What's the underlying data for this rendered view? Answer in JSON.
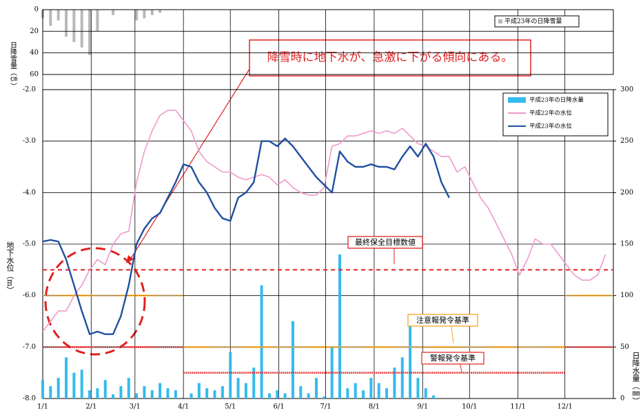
{
  "chart_data": [
    {
      "type": "bar",
      "y_label": "日降雪量（㎝）",
      "ylim": [
        0,
        60
      ],
      "yticks": [
        0,
        20,
        40,
        60
      ],
      "grid": true,
      "x": [
        "1/1",
        "1/6",
        "1/11",
        "1/16",
        "1/21",
        "1/26",
        "1/31",
        "2/5",
        "2/10",
        "2/15",
        "2/20",
        "2/25",
        "3/2",
        "3/7",
        "3/12",
        "3/17",
        "3/22",
        "3/27",
        "4/1",
        "4/6",
        "4/11",
        "4/16",
        "4/21",
        "4/26",
        "5/1",
        "5/6",
        "5/11",
        "5/16",
        "5/21",
        "5/26",
        "5/31",
        "6/5",
        "6/10",
        "6/15",
        "6/20",
        "6/25",
        "6/30",
        "7/5",
        "7/10",
        "7/15",
        "7/20",
        "7/25",
        "7/30",
        "8/4",
        "8/9",
        "8/14",
        "8/19",
        "8/24",
        "8/29",
        "9/3",
        "9/8",
        "9/13",
        "9/18",
        "9/23",
        "9/28",
        "10/3",
        "10/8",
        "10/13",
        "10/18",
        "10/23",
        "10/28",
        "11/2",
        "11/7",
        "11/12",
        "11/17",
        "11/22",
        "11/27",
        "12/2",
        "12/7",
        "12/12",
        "12/17",
        "12/22",
        "12/27"
      ],
      "xticks": [
        "1/1",
        "2/1",
        "3/1",
        "4/1",
        "5/1",
        "6/1",
        "7/1",
        "8/1",
        "9/1",
        "10/1",
        "11/1",
        "12/1"
      ],
      "series": [
        {
          "name": "平成23年の日降雪量",
          "color": "#b8b8b8",
          "values": [
            8,
            15,
            10,
            25,
            30,
            35,
            42,
            20,
            0,
            5,
            0,
            0,
            10,
            8,
            5,
            3,
            0,
            0,
            null,
            null,
            null,
            null,
            null,
            null,
            null,
            null,
            null,
            null,
            null,
            null,
            null,
            null,
            null,
            null,
            null,
            null,
            null,
            null,
            null,
            null,
            null,
            null,
            null,
            null,
            null,
            null,
            null,
            null,
            null,
            null,
            null,
            null,
            null,
            null,
            null,
            null,
            null,
            null,
            null,
            null,
            null,
            null,
            null,
            null,
            null,
            null,
            null,
            null,
            null,
            null,
            null,
            null,
            null
          ]
        }
      ]
    },
    {
      "type": "line",
      "y_label": "地下水位（m）",
      "y2_label": "日降水量（㎜）",
      "annotation": "降雪時に地下水が、急激に下がる傾向にある。",
      "ylim": [
        -2,
        -8
      ],
      "yticks": [
        {
          "value": -2,
          "label": "-2.0"
        },
        {
          "value": -3,
          "label": "-3.0"
        },
        {
          "value": -4,
          "label": "-4.0"
        },
        {
          "value": -5,
          "label": "-5.0"
        },
        {
          "value": -6,
          "label": "-6.0"
        },
        {
          "value": -7,
          "label": "-7.0"
        },
        {
          "value": -8,
          "label": "-8.0"
        }
      ],
      "y2lim": [
        0,
        300
      ],
      "y2ticks": [
        0,
        50,
        100,
        150,
        200,
        250,
        300
      ],
      "grid": true,
      "x": [
        "1/1",
        "1/6",
        "1/11",
        "1/16",
        "1/21",
        "1/26",
        "1/31",
        "2/5",
        "2/10",
        "2/15",
        "2/20",
        "2/25",
        "3/2",
        "3/7",
        "3/12",
        "3/17",
        "3/22",
        "3/27",
        "4/1",
        "4/6",
        "4/11",
        "4/16",
        "4/21",
        "4/26",
        "5/1",
        "5/6",
        "5/11",
        "5/16",
        "5/21",
        "5/26",
        "5/31",
        "6/5",
        "6/10",
        "6/15",
        "6/20",
        "6/25",
        "6/30",
        "7/5",
        "7/10",
        "7/15",
        "7/20",
        "7/25",
        "7/30",
        "8/4",
        "8/9",
        "8/14",
        "8/19",
        "8/24",
        "8/29",
        "9/3",
        "9/8",
        "9/13",
        "9/18",
        "9/23",
        "9/28",
        "10/3",
        "10/8",
        "10/13",
        "10/18",
        "10/23",
        "10/28",
        "11/2",
        "11/7",
        "11/12",
        "11/17",
        "11/22",
        "11/27",
        "12/2",
        "12/7",
        "12/12",
        "12/17",
        "12/22",
        "12/27"
      ],
      "xticks": [
        "1/1",
        "2/1",
        "3/1",
        "4/1",
        "5/1",
        "6/1",
        "7/1",
        "8/1",
        "9/1",
        "10/1",
        "11/1",
        "12/1"
      ],
      "series": [
        {
          "name": "平成23年の日降水量",
          "type": "bar",
          "axis": "y2",
          "color": "#33bbee",
          "values": [
            18,
            12,
            20,
            40,
            25,
            28,
            8,
            10,
            18,
            4,
            12,
            20,
            5,
            12,
            8,
            15,
            10,
            8,
            0,
            5,
            15,
            10,
            8,
            12,
            45,
            20,
            15,
            30,
            110,
            5,
            8,
            5,
            75,
            12,
            5,
            20,
            2,
            50,
            140,
            10,
            15,
            8,
            20,
            15,
            10,
            30,
            40,
            70,
            20,
            10,
            3,
            0,
            null,
            null,
            null,
            null,
            null,
            null,
            null,
            null,
            null,
            null,
            null,
            null,
            null,
            null,
            null,
            null,
            null,
            null,
            null,
            null,
            null
          ]
        },
        {
          "name": "平成22年の水位",
          "type": "line",
          "color": "#ee99cc",
          "values": [
            -6.7,
            -6.5,
            -6.3,
            -6.3,
            -6.0,
            -5.8,
            -5.5,
            -5.3,
            -5.4,
            -5.0,
            -4.8,
            -4.75,
            -3.8,
            -3.2,
            -2.8,
            -2.5,
            -2.4,
            -2.4,
            -2.6,
            -2.8,
            -3.2,
            -3.4,
            -3.5,
            -3.6,
            -3.6,
            -3.7,
            -3.75,
            -3.7,
            -3.65,
            -3.7,
            -3.85,
            -3.75,
            -3.9,
            -4.0,
            -4.05,
            -4.05,
            -3.9,
            -3.1,
            -3.05,
            -2.9,
            -2.9,
            -2.85,
            -2.8,
            -2.85,
            -2.8,
            -2.85,
            -2.75,
            -2.9,
            -3.05,
            -3.1,
            -3.2,
            -3.3,
            -3.3,
            -3.6,
            -3.5,
            -3.8,
            -4.1,
            -4.3,
            -4.6,
            -4.9,
            -5.2,
            -5.6,
            -5.3,
            -4.9,
            -5.0,
            -5.0,
            -5.2,
            -5.4,
            -5.6,
            -5.7,
            -5.7,
            -5.6,
            -5.2
          ]
        },
        {
          "name": "平成23年の水位",
          "type": "line",
          "color": "#1f4fa0",
          "values": [
            -4.95,
            -4.92,
            -4.95,
            -5.3,
            -5.8,
            -6.3,
            -6.75,
            -6.7,
            -6.75,
            -6.75,
            -6.4,
            -5.8,
            -5.0,
            -4.7,
            -4.5,
            -4.4,
            -4.1,
            -3.8,
            -3.45,
            -3.5,
            -3.8,
            -4.0,
            -4.3,
            -4.5,
            -4.55,
            -4.1,
            -4.0,
            -3.8,
            -3.0,
            -3.0,
            -3.1,
            -2.95,
            -3.1,
            -3.3,
            -3.5,
            -3.7,
            -3.85,
            -4.0,
            -3.2,
            -3.4,
            -3.5,
            -3.5,
            -3.45,
            -3.5,
            -3.5,
            -3.55,
            -3.3,
            -3.1,
            -3.3,
            -3.05,
            -3.3,
            -3.8,
            -4.1,
            null,
            null,
            null,
            null,
            null,
            null,
            null,
            null,
            null,
            null,
            null,
            null,
            null,
            null,
            null,
            null,
            null,
            null,
            null,
            null
          ]
        }
      ],
      "reference_lines": [
        {
          "name": "最終保全目標数値",
          "color": "#e02020",
          "dashed": true,
          "segments": [
            {
              "y": -5.5,
              "from": "1/1",
              "to": null
            }
          ]
        },
        {
          "name": "注意報発令基準",
          "color": "#f5a623",
          "dashed": false,
          "segments": [
            {
              "y": -6,
              "from": "1/1",
              "to": "4/1"
            },
            {
              "y": -7,
              "from": "4/1",
              "to": "12/1"
            },
            {
              "y": -6,
              "from": "12/1",
              "to": null
            }
          ]
        },
        {
          "name": "警報発令基準",
          "color": "#e03030",
          "dashed": false,
          "segments": [
            {
              "y": -7,
              "from": "1/1",
              "to": "4/1"
            },
            {
              "y": -7.5,
              "from": "4/1",
              "to": "12/1"
            },
            {
              "y": -7,
              "from": "12/1",
              "to": null
            }
          ]
        }
      ]
    }
  ]
}
